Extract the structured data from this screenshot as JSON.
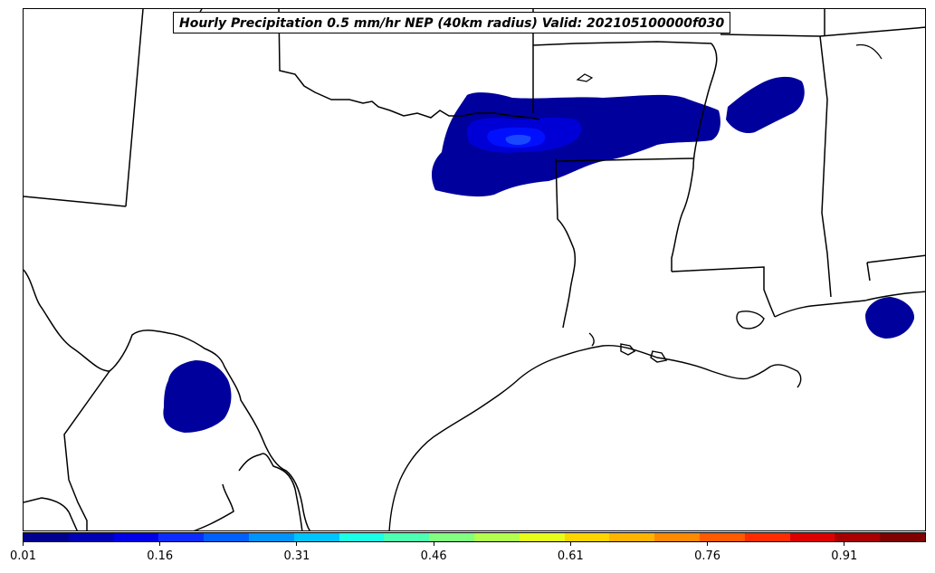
{
  "title": "Hourly Precipitation 0.5 mm/hr NEP (40km radius) Valid: 202105100000f030",
  "colorbar": {
    "ticks": [
      "0.01",
      "0.16",
      "0.31",
      "0.46",
      "0.61",
      "0.76",
      "0.91"
    ],
    "colors": [
      "#00008f",
      "#0000b4",
      "#0000e6",
      "#0c2cff",
      "#0060ff",
      "#0094ff",
      "#00c4ff",
      "#1affe6",
      "#4dffb3",
      "#80ff80",
      "#b3ff4d",
      "#e6ff1a",
      "#ffd500",
      "#ffb400",
      "#ff8a00",
      "#ff5a00",
      "#ff2c00",
      "#dd0000",
      "#a80000",
      "#800000"
    ]
  },
  "fill_colors": {
    "level1": "#00009c",
    "level2": "#0000d6",
    "level3": "#0010ff",
    "level4": "#1a48ff"
  }
}
